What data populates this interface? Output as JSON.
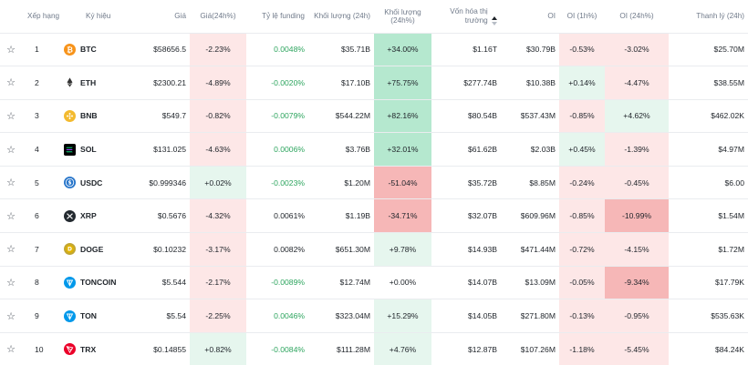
{
  "headers": {
    "rank": "Xếp hạng",
    "symbol": "Ký hiệu",
    "price": "Giá",
    "price_change": "Giá(24h%)",
    "funding": "Tỷ lệ funding",
    "volume": "Khối lượng (24h)",
    "volume_change": "Khối lượng (24h%)",
    "mcap_line1": "Vốn hóa thị",
    "mcap_line2": "trường",
    "oi": "OI",
    "oi_1h": "OI (1h%)",
    "oi_24h": "OI (24h%)",
    "liq": "Thanh lý (24h)"
  },
  "colors": {
    "red_bg_light": "#fde7e7",
    "red_bg_strong": "#f6b7b7",
    "green_bg_light": "#e6f6ee",
    "green_bg_strong": "#b5e8cf",
    "funding_green": "#2ea55f"
  },
  "rows": [
    {
      "rank": "1",
      "icon": "btc-icon",
      "symbol": "BTC",
      "price": "$58656.5",
      "price_change": "-2.23%",
      "funding": "0.0048%",
      "volume": "$35.71B",
      "volume_change": "+34.00%",
      "mcap": "$1.16T",
      "oi": "$30.79B",
      "oi_1h": "-0.53%",
      "oi_24h": "-3.02%",
      "liq": "$25.70M"
    },
    {
      "rank": "2",
      "icon": "eth-icon",
      "symbol": "ETH",
      "price": "$2300.21",
      "price_change": "-4.89%",
      "funding": "-0.0020%",
      "volume": "$17.10B",
      "volume_change": "+75.75%",
      "mcap": "$277.74B",
      "oi": "$10.38B",
      "oi_1h": "+0.14%",
      "oi_24h": "-4.47%",
      "liq": "$38.55M"
    },
    {
      "rank": "3",
      "icon": "bnb-icon",
      "symbol": "BNB",
      "price": "$549.7",
      "price_change": "-0.82%",
      "funding": "-0.0079%",
      "volume": "$544.22M",
      "volume_change": "+82.16%",
      "mcap": "$80.54B",
      "oi": "$537.43M",
      "oi_1h": "-0.85%",
      "oi_24h": "+4.62%",
      "liq": "$462.02K"
    },
    {
      "rank": "4",
      "icon": "sol-icon",
      "symbol": "SOL",
      "price": "$131.025",
      "price_change": "-4.63%",
      "funding": "0.0006%",
      "volume": "$3.76B",
      "volume_change": "+32.01%",
      "mcap": "$61.62B",
      "oi": "$2.03B",
      "oi_1h": "+0.45%",
      "oi_24h": "-1.39%",
      "liq": "$4.97M"
    },
    {
      "rank": "5",
      "icon": "usdc-icon",
      "symbol": "USDC",
      "price": "$0.999346",
      "price_change": "+0.02%",
      "funding": "-0.0023%",
      "volume": "$1.20M",
      "volume_change": "-51.04%",
      "mcap": "$35.72B",
      "oi": "$8.85M",
      "oi_1h": "-0.24%",
      "oi_24h": "-0.45%",
      "liq": "$6.00"
    },
    {
      "rank": "6",
      "icon": "xrp-icon",
      "symbol": "XRP",
      "price": "$0.5676",
      "price_change": "-4.32%",
      "funding": "0.0061%",
      "volume": "$1.19B",
      "volume_change": "-34.71%",
      "mcap": "$32.07B",
      "oi": "$609.96M",
      "oi_1h": "-0.85%",
      "oi_24h": "-10.99%",
      "liq": "$1.54M"
    },
    {
      "rank": "7",
      "icon": "doge-icon",
      "symbol": "DOGE",
      "price": "$0.10232",
      "price_change": "-3.17%",
      "funding": "0.0082%",
      "volume": "$651.30M",
      "volume_change": "+9.78%",
      "mcap": "$14.93B",
      "oi": "$471.44M",
      "oi_1h": "-0.72%",
      "oi_24h": "-4.15%",
      "liq": "$1.72M"
    },
    {
      "rank": "8",
      "icon": "toncoin-icon",
      "symbol": "TONCOIN",
      "price": "$5.544",
      "price_change": "-2.17%",
      "funding": "-0.0089%",
      "volume": "$12.74M",
      "volume_change": "+0.00%",
      "mcap": "$14.07B",
      "oi": "$13.09M",
      "oi_1h": "-0.05%",
      "oi_24h": "-9.34%",
      "liq": "$17.79K"
    },
    {
      "rank": "9",
      "icon": "ton-icon",
      "symbol": "TON",
      "price": "$5.54",
      "price_change": "-2.25%",
      "funding": "0.0046%",
      "volume": "$323.04M",
      "volume_change": "+15.29%",
      "mcap": "$14.05B",
      "oi": "$271.80M",
      "oi_1h": "-0.13%",
      "oi_24h": "-0.95%",
      "liq": "$535.63K"
    },
    {
      "rank": "10",
      "icon": "trx-icon",
      "symbol": "TRX",
      "price": "$0.14855",
      "price_change": "+0.82%",
      "funding": "-0.0084%",
      "volume": "$111.28M",
      "volume_change": "+4.76%",
      "mcap": "$12.87B",
      "oi": "$107.26M",
      "oi_1h": "-1.18%",
      "oi_24h": "-5.45%",
      "liq": "$84.24K"
    }
  ]
}
